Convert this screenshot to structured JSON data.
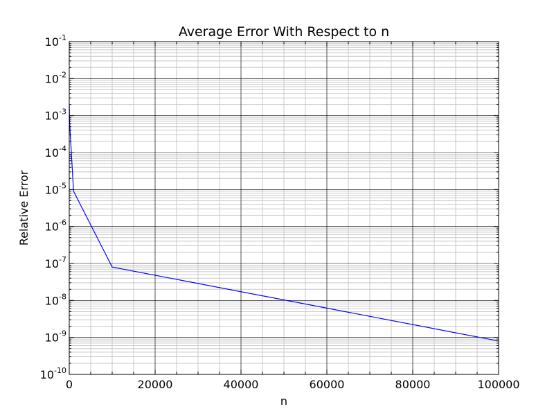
{
  "chart_data": {
    "type": "line",
    "title": "Average Error With Respect to n",
    "xlabel": "n",
    "ylabel": "Relative Error",
    "xlim": [
      0,
      100000
    ],
    "ylim": [
      1e-10,
      0.1
    ],
    "yscale": "log",
    "grid": true,
    "x_ticks": [
      "0",
      "20000",
      "40000",
      "60000",
      "80000",
      "100000"
    ],
    "x_tick_values": [
      0,
      20000,
      40000,
      60000,
      80000,
      100000
    ],
    "y_tick_exponents": [
      -10,
      -9,
      -8,
      -7,
      -6,
      -5,
      -4,
      -3,
      -2,
      -1
    ],
    "y_tick_base": "10",
    "line_color": "#0000ff",
    "series": [
      {
        "x": [
          10,
          100,
          1000,
          10000,
          100000
        ],
        "y": [
          0.002,
          0.0006,
          9e-06,
          8e-08,
          8e-10
        ]
      }
    ]
  }
}
